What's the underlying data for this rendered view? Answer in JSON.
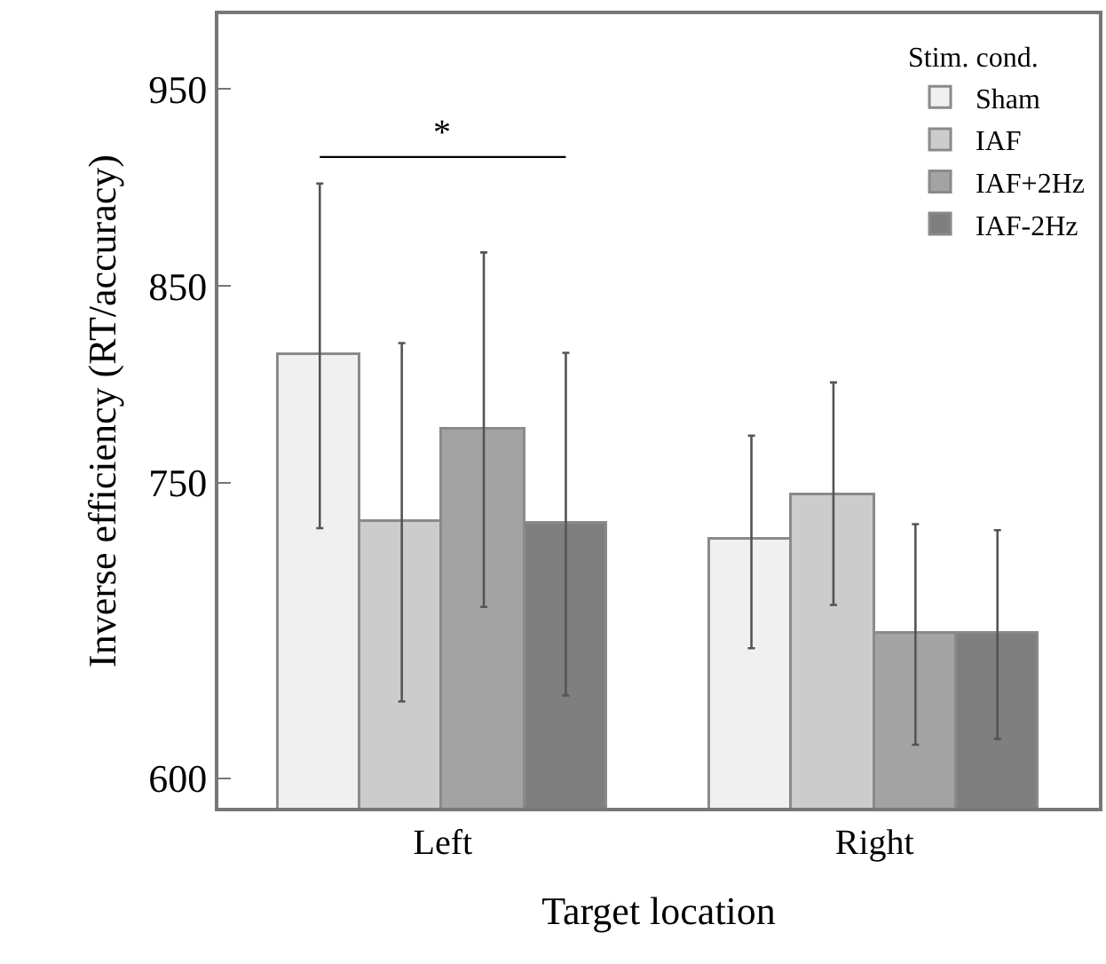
{
  "chart_data": {
    "type": "bar",
    "xlabel": "Target location",
    "ylabel": "Inverse efficiency (RT/accuracy)",
    "legend_title": "Stim. cond.",
    "categories": [
      "Left",
      "Right"
    ],
    "series": [
      {
        "name": "Sham",
        "color": "#f0f0f0",
        "values": [
          815,
          721
        ],
        "errors": [
          [
            727,
            902
          ],
          [
            666,
            774
          ]
        ]
      },
      {
        "name": "IAF",
        "color": "#cccccc",
        "values": [
          730,
          744
        ],
        "errors": [
          [
            639,
            821
          ],
          [
            688,
            801
          ]
        ]
      },
      {
        "name": "IAF+2Hz",
        "color": "#a3a3a3",
        "values": [
          777,
          673
        ],
        "errors": [
          [
            687,
            867
          ],
          [
            617,
            729
          ]
        ]
      },
      {
        "name": "IAF-2Hz",
        "color": "#7f7f7f",
        "values": [
          729,
          673
        ],
        "errors": [
          [
            642,
            816
          ],
          [
            620,
            726
          ]
        ]
      }
    ],
    "ylim": [
      585,
      988
    ],
    "yticks": [
      600,
      750,
      850,
      950
    ],
    "annotations": [
      "*"
    ],
    "legend": "top right",
    "grid": false
  }
}
